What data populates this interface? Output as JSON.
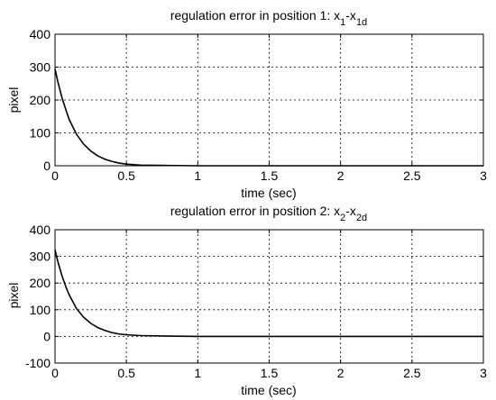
{
  "chart_data": [
    {
      "type": "line",
      "title": {
        "prefix": "regulation error in position 1: x",
        "sub1": "1",
        "mid": "-x",
        "sub2": "1d"
      },
      "xlabel": "time (sec)",
      "ylabel": "pixel",
      "xlim": [
        0,
        3
      ],
      "ylim": [
        0,
        400
      ],
      "xticks": [
        0,
        0.5,
        1,
        1.5,
        2,
        2.5,
        3
      ],
      "yticks": [
        0,
        100,
        200,
        300,
        400
      ],
      "xtick_labels": [
        "0",
        "0.5",
        "1",
        "1.5",
        "2",
        "2.5",
        "3"
      ],
      "ytick_labels": [
        "0",
        "100",
        "200",
        "300",
        "400"
      ],
      "grid": true,
      "series": [
        {
          "x": [
            0,
            0.02,
            0.05,
            0.08,
            0.1,
            0.15,
            0.2,
            0.25,
            0.3,
            0.35,
            0.4,
            0.45,
            0.5,
            0.6,
            0.8,
            1,
            1.5,
            2,
            2.5,
            3
          ],
          "y": [
            295,
            255,
            205,
            165,
            140,
            96,
            66,
            45,
            30,
            20,
            13,
            8,
            5,
            2,
            1,
            0,
            0,
            0,
            0,
            0
          ]
        }
      ]
    },
    {
      "type": "line",
      "title": {
        "prefix": "regulation error in position 2: x",
        "sub1": "2",
        "mid": "-x",
        "sub2": "2d"
      },
      "xlabel": "time (sec)",
      "ylabel": "pixel",
      "xlim": [
        0,
        3
      ],
      "ylim": [
        -100,
        400
      ],
      "xticks": [
        0,
        0.5,
        1,
        1.5,
        2,
        2.5,
        3
      ],
      "yticks": [
        -100,
        0,
        100,
        200,
        300,
        400
      ],
      "xtick_labels": [
        "0",
        "0.5",
        "1",
        "1.5",
        "2",
        "2.5",
        "3"
      ],
      "ytick_labels": [
        "-100",
        "0",
        "100",
        "200",
        "300",
        "400"
      ],
      "grid": true,
      "series": [
        {
          "x": [
            0,
            0.02,
            0.05,
            0.08,
            0.1,
            0.15,
            0.2,
            0.25,
            0.3,
            0.35,
            0.4,
            0.45,
            0.5,
            0.6,
            0.8,
            1,
            1.5,
            2,
            2.5,
            3
          ],
          "y": [
            325,
            280,
            225,
            180,
            155,
            105,
            72,
            49,
            33,
            22,
            14,
            9,
            6,
            3,
            1,
            0,
            0,
            0,
            0,
            0
          ]
        }
      ]
    }
  ]
}
